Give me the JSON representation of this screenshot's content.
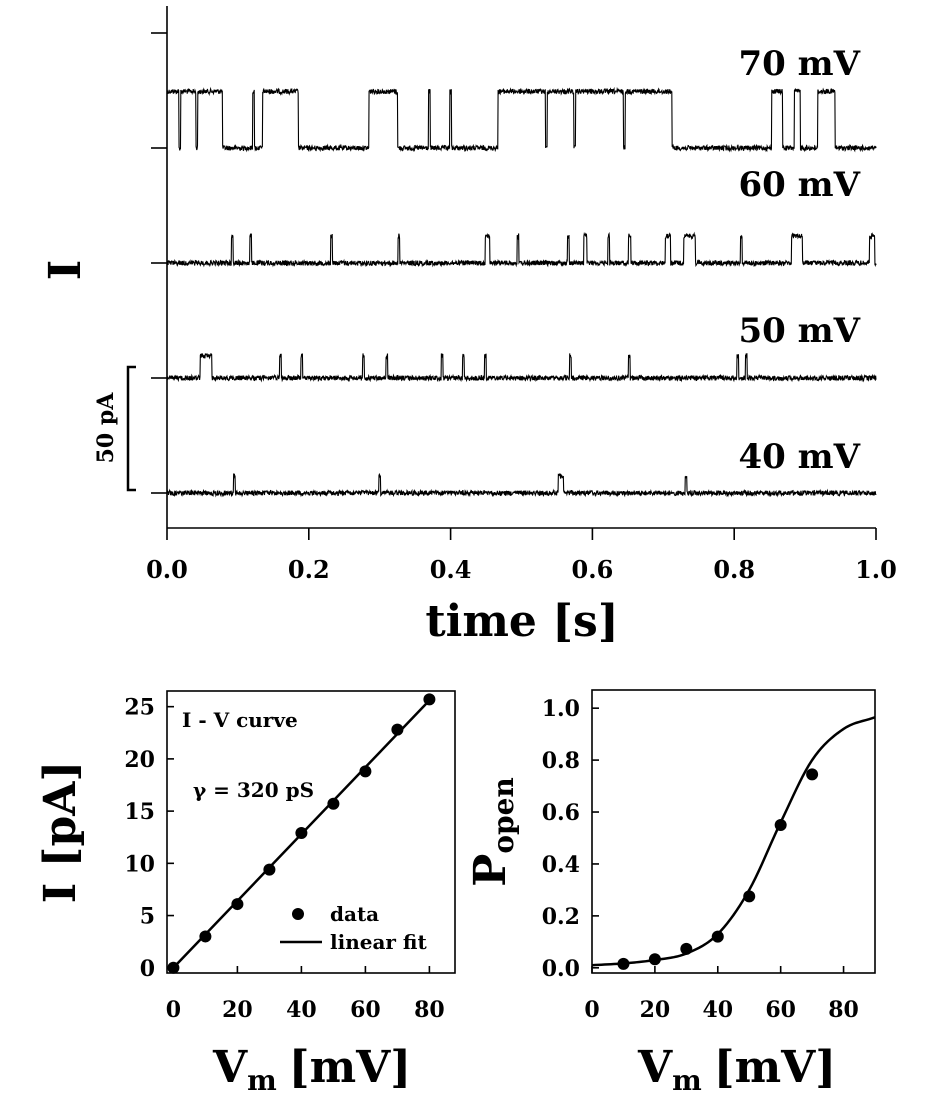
{
  "chart_data": [
    {
      "type": "line",
      "title": "",
      "xlabel": "time [s]",
      "ylabel": "I",
      "xlim": [
        0,
        1
      ],
      "x_ticks": [
        "0.0",
        "0.2",
        "0.4",
        "0.6",
        "0.8",
        "1.0"
      ],
      "scale_bar_label": "50 pA",
      "scale_bar_value_pA": 50,
      "series": [
        {
          "name": "70 mV",
          "open_amplitude_pA": 23,
          "open_intervals": [
            [
              0.0,
              0.078
            ],
            [
              0.135,
              0.185
            ],
            [
              0.285,
              0.325
            ],
            [
              0.467,
              0.712
            ],
            [
              0.853,
              0.868
            ],
            [
              0.885,
              0.893
            ],
            [
              0.918,
              0.942
            ]
          ],
          "closing_spikes": [
            0.018,
            0.042,
            0.535,
            0.575,
            0.645
          ],
          "opening_spikes": [
            0.122,
            0.37,
            0.4
          ]
        },
        {
          "name": "60 mV",
          "open_amplitude_pA": 11,
          "open_intervals": [
            [
              0.449,
              0.455
            ],
            [
              0.588,
              0.592
            ],
            [
              0.651,
              0.654
            ],
            [
              0.703,
              0.71
            ],
            [
              0.729,
              0.745
            ],
            [
              0.881,
              0.896
            ],
            [
              0.991,
              0.998
            ]
          ],
          "opening_spikes": [
            0.092,
            0.118,
            0.232,
            0.327,
            0.495,
            0.566,
            0.623,
            0.81
          ]
        },
        {
          "name": "50 mV",
          "open_amplitude_pA": 9,
          "open_intervals": [
            [
              0.047,
              0.063
            ]
          ],
          "opening_spikes": [
            0.16,
            0.19,
            0.277,
            0.31,
            0.388,
            0.418,
            0.449,
            0.569,
            0.652,
            0.805,
            0.817
          ]
        },
        {
          "name": "40 mV",
          "open_amplitude_pA": 7,
          "open_intervals": [
            [
              0.552,
              0.559
            ]
          ],
          "opening_spikes": [
            0.095,
            0.3,
            0.732
          ]
        }
      ]
    },
    {
      "type": "scatter",
      "title": "I - V curve",
      "annotation": "γ = 320 pS",
      "xlabel_main": "V",
      "xlabel_sub": "m",
      "xlabel_unit": "[mV]",
      "ylabel": "I [pA]",
      "xlim": [
        -2,
        88
      ],
      "ylim": [
        -0.5,
        26.5
      ],
      "x_ticks": [
        0,
        20,
        40,
        60,
        80
      ],
      "y_ticks": [
        0,
        5,
        10,
        15,
        20,
        25
      ],
      "legend": {
        "position": "bottom-right",
        "entries": [
          "data",
          "linear fit"
        ]
      },
      "series": [
        {
          "name": "data",
          "x": [
            0,
            10,
            20,
            30,
            40,
            50,
            60,
            70,
            80
          ],
          "y": [
            0,
            3.0,
            6.1,
            9.4,
            12.9,
            15.7,
            18.8,
            22.8,
            25.7
          ]
        },
        {
          "name": "linear fit",
          "x": [
            0,
            80
          ],
          "y": [
            0,
            25.6
          ]
        }
      ]
    },
    {
      "type": "scatter",
      "title": "",
      "xlabel_main": "V",
      "xlabel_sub": "m",
      "xlabel_unit": "[mV]",
      "ylabel_main": "P",
      "ylabel_sub": "open",
      "xlim": [
        0,
        90
      ],
      "ylim": [
        -0.02,
        1.07
      ],
      "x_ticks": [
        0,
        20,
        40,
        60,
        80
      ],
      "y_ticks": [
        "0.0",
        "0.2",
        "0.4",
        "0.6",
        "0.8",
        "1.0"
      ],
      "series": [
        {
          "name": "data",
          "x": [
            10,
            20,
            30,
            40,
            50,
            60,
            70
          ],
          "y": [
            0.015,
            0.033,
            0.073,
            0.12,
            0.275,
            0.55,
            0.745
          ]
        },
        {
          "name": "fit",
          "x": [
            0,
            10,
            20,
            30,
            40,
            50,
            60,
            70,
            80,
            90
          ],
          "y": [
            0.01,
            0.017,
            0.03,
            0.055,
            0.13,
            0.3,
            0.56,
            0.8,
            0.92,
            0.965
          ]
        }
      ]
    }
  ]
}
